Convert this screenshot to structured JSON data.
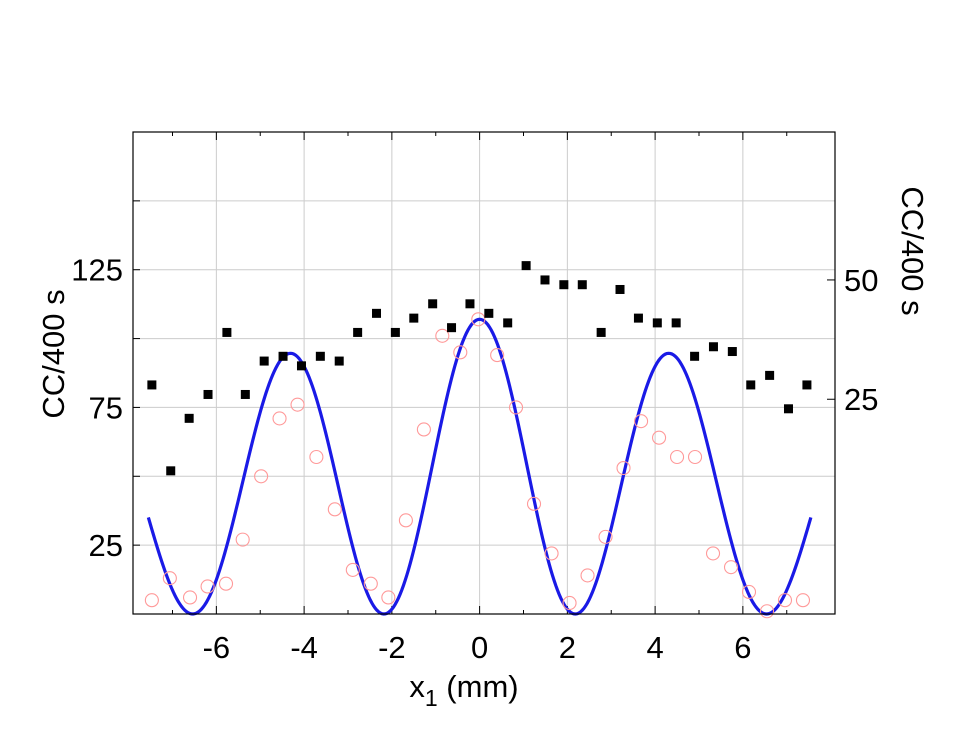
{
  "chart_data": {
    "type": "scatter",
    "xlabel_main": "x",
    "xlabel_sub": "1",
    "xlabel_unit": " (mm)",
    "ylabel_left": "CC/400 s",
    "ylabel_right": "CC/400 s",
    "xlim": [
      -7.9,
      8.1
    ],
    "ylim_left": [
      0,
      175
    ],
    "ylim_right": [
      -20,
      81
    ],
    "grid": true,
    "x_ticks": [
      -6,
      -4,
      -2,
      0,
      2,
      4,
      6
    ],
    "x_tick_labels": [
      "-6",
      "-4",
      "-2",
      "0",
      "2",
      "4",
      "6"
    ],
    "y_left_ticks": [
      25,
      75,
      125
    ],
    "y_left_tick_labels": [
      "25",
      "75",
      "125"
    ],
    "y_right_ticks": [
      25,
      50
    ],
    "y_right_tick_labels": [
      "25",
      "50"
    ],
    "colors": {
      "squares": "#000000",
      "circles": "#ff9999",
      "fit": "#1a1ae6",
      "grid": "#cccccc"
    },
    "series": [
      {
        "axis": "right",
        "marker": "filled-square",
        "x": [
          -7.47,
          -7.04,
          -6.62,
          -6.19,
          -5.76,
          -5.34,
          -4.91,
          -4.48,
          -4.06,
          -3.63,
          -3.2,
          -2.78,
          -2.35,
          -1.92,
          -1.5,
          -1.07,
          -0.64,
          -0.22,
          0.21,
          0.64,
          1.06,
          1.49,
          1.92,
          2.34,
          2.77,
          3.2,
          3.62,
          4.05,
          4.48,
          4.9,
          5.33,
          5.76,
          6.18,
          6.61,
          7.04,
          7.46
        ],
        "y": [
          28,
          10,
          21,
          26,
          39,
          26,
          33,
          34,
          32,
          34,
          33,
          39,
          43,
          39,
          42,
          45,
          40,
          45,
          43,
          41,
          53,
          50,
          49,
          49,
          39,
          48,
          42,
          41,
          41,
          34,
          36,
          35,
          28,
          30,
          23,
          28
        ]
      },
      {
        "axis": "left",
        "marker": "open-circle",
        "x": [
          -7.47,
          -7.06,
          -6.6,
          -6.2,
          -5.78,
          -5.4,
          -4.98,
          -4.56,
          -4.15,
          -3.72,
          -3.3,
          -2.89,
          -2.48,
          -2.08,
          -1.68,
          -1.27,
          -0.85,
          -0.44,
          -0.03,
          0.4,
          0.83,
          1.24,
          1.64,
          2.05,
          2.46,
          2.87,
          3.28,
          3.68,
          4.09,
          4.5,
          4.91,
          5.32,
          5.73,
          6.14,
          6.55,
          6.96,
          7.37
        ],
        "y": [
          5,
          13,
          6,
          10,
          11,
          27,
          50,
          71,
          76,
          57,
          38,
          16,
          11,
          6,
          34,
          67,
          101,
          95,
          107,
          94,
          75,
          40,
          22,
          4,
          14,
          28,
          53,
          70,
          64,
          57,
          57,
          22,
          17,
          8,
          1,
          5,
          5
        ]
      },
      {
        "axis": "left",
        "marker": "line",
        "fit_model": "a*cos^2(pi*x/p)*envelope",
        "fit_params": {
          "amplitude": 107,
          "period": 4.36,
          "envelope_sigma": 8.6
        }
      }
    ]
  }
}
